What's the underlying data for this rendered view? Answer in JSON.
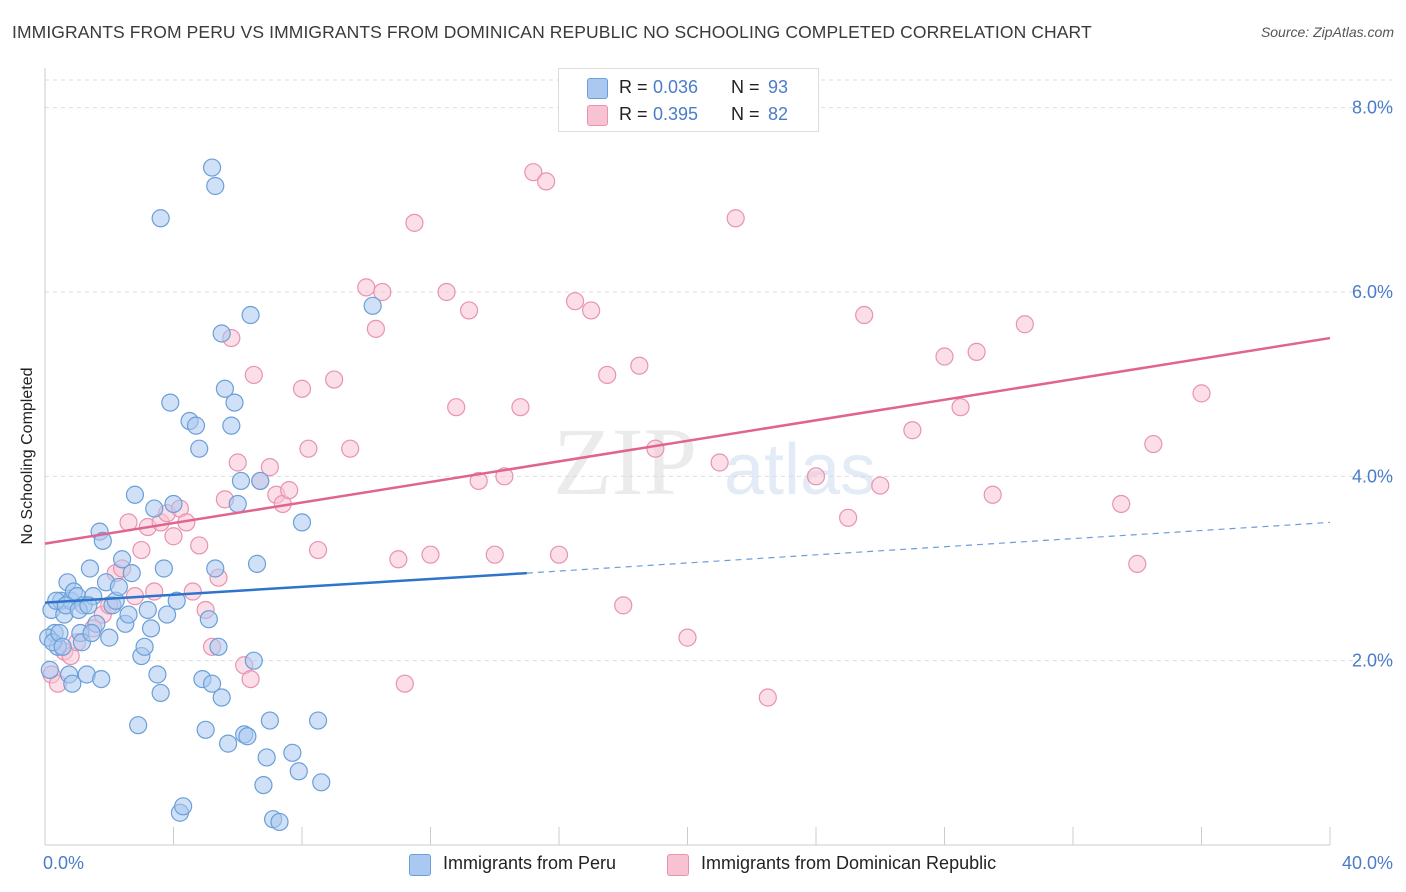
{
  "header": {
    "title": "IMMIGRANTS FROM PERU VS IMMIGRANTS FROM DOMINICAN REPUBLIC NO SCHOOLING COMPLETED CORRELATION CHART",
    "source": "Source: ZipAtlas.com"
  },
  "legend_top": {
    "rows": [
      {
        "r_label": "R =",
        "r_value": "0.036",
        "n_label": "N =",
        "n_value": "93"
      },
      {
        "r_label": "R =",
        "r_value": "0.395",
        "n_label": "N =",
        "n_value": "82"
      }
    ]
  },
  "legend_bottom": {
    "items": [
      "Immigrants from Peru",
      "Immigrants from Dominican Republic"
    ]
  },
  "watermark": {
    "zip": "ZIP",
    "atlas": "atlas"
  },
  "colors": {
    "peru_fill": "#aac8f0",
    "peru_stroke": "#6a9fd8",
    "peru_line": "#2f74cc",
    "dr_fill": "#f7c3d3",
    "dr_stroke": "#e893b0",
    "dr_line": "#e0648e",
    "tick_label": "#4a7cc9",
    "grid": "#dddddd"
  },
  "chart_data": {
    "type": "scatter",
    "title": "IMMIGRANTS FROM PERU VS IMMIGRANTS FROM DOMINICAN REPUBLIC NO SCHOOLING COMPLETED CORRELATION CHART",
    "xlabel": "",
    "ylabel": "No Schooling Completed",
    "xlim": [
      0,
      40
    ],
    "ylim": [
      0,
      8.3
    ],
    "x_tick_labels": [
      "0.0%",
      "40.0%"
    ],
    "y_ticks": [
      2,
      4,
      6,
      8
    ],
    "y_tick_labels": [
      "2.0%",
      "4.0%",
      "6.0%",
      "8.0%"
    ],
    "grid": true,
    "legend_position": "top-center",
    "series": [
      {
        "name": "Immigrants from Peru",
        "r": 0.036,
        "n": 93,
        "trend": {
          "x": [
            0,
            15
          ],
          "y": [
            2.63,
            2.95
          ],
          "dashed_to": [
            40,
            3.5
          ]
        },
        "points": [
          [
            0.2,
            2.55
          ],
          [
            0.3,
            2.3
          ],
          [
            0.4,
            2.15
          ],
          [
            0.5,
            2.65
          ],
          [
            0.6,
            2.5
          ],
          [
            0.7,
            2.85
          ],
          [
            0.8,
            2.65
          ],
          [
            0.9,
            2.75
          ],
          [
            1.0,
            2.7
          ],
          [
            1.1,
            2.3
          ],
          [
            1.2,
            2.6
          ],
          [
            1.3,
            1.85
          ],
          [
            1.4,
            3.0
          ],
          [
            1.5,
            2.7
          ],
          [
            1.6,
            2.4
          ],
          [
            1.7,
            3.4
          ],
          [
            1.8,
            3.3
          ],
          [
            1.9,
            2.85
          ],
          [
            2.0,
            2.25
          ],
          [
            2.1,
            2.6
          ],
          [
            2.2,
            2.65
          ],
          [
            2.3,
            2.8
          ],
          [
            2.4,
            3.1
          ],
          [
            2.5,
            2.4
          ],
          [
            2.6,
            2.5
          ],
          [
            2.7,
            2.95
          ],
          [
            2.8,
            3.8
          ],
          [
            2.9,
            1.3
          ],
          [
            3.0,
            2.05
          ],
          [
            3.1,
            2.15
          ],
          [
            3.2,
            2.55
          ],
          [
            3.3,
            2.35
          ],
          [
            3.4,
            3.65
          ],
          [
            3.5,
            1.85
          ],
          [
            3.6,
            1.65
          ],
          [
            3.7,
            3.0
          ],
          [
            3.8,
            2.5
          ],
          [
            3.9,
            4.8
          ],
          [
            4.0,
            3.7
          ],
          [
            4.1,
            2.65
          ],
          [
            4.2,
            0.35
          ],
          [
            4.3,
            0.42
          ],
          [
            4.5,
            4.6
          ],
          [
            4.7,
            4.55
          ],
          [
            4.8,
            4.3
          ],
          [
            4.9,
            1.8
          ],
          [
            5.0,
            1.25
          ],
          [
            5.1,
            2.45
          ],
          [
            5.2,
            1.75
          ],
          [
            5.3,
            3.0
          ],
          [
            5.4,
            2.15
          ],
          [
            5.5,
            1.6
          ],
          [
            5.6,
            4.95
          ],
          [
            5.7,
            1.1
          ],
          [
            5.8,
            4.55
          ],
          [
            5.9,
            4.8
          ],
          [
            6.0,
            3.7
          ],
          [
            6.1,
            3.95
          ],
          [
            6.2,
            1.2
          ],
          [
            6.3,
            1.18
          ],
          [
            6.4,
            5.75
          ],
          [
            6.5,
            2.0
          ],
          [
            6.6,
            3.05
          ],
          [
            6.7,
            3.95
          ],
          [
            6.8,
            0.65
          ],
          [
            6.9,
            0.95
          ],
          [
            7.0,
            1.35
          ],
          [
            7.1,
            0.28
          ],
          [
            7.3,
            0.25
          ],
          [
            7.7,
            1.0
          ],
          [
            7.9,
            0.8
          ],
          [
            8.0,
            3.5
          ],
          [
            8.5,
            1.35
          ],
          [
            8.6,
            0.68
          ],
          [
            10.2,
            5.85
          ],
          [
            5.2,
            7.35
          ],
          [
            5.3,
            7.15
          ],
          [
            3.6,
            6.8
          ],
          [
            5.5,
            5.55
          ],
          [
            0.1,
            2.25
          ],
          [
            0.15,
            1.9
          ],
          [
            0.25,
            2.2
          ],
          [
            0.35,
            2.65
          ],
          [
            0.45,
            2.3
          ],
          [
            0.55,
            2.15
          ],
          [
            0.65,
            2.6
          ],
          [
            0.75,
            1.85
          ],
          [
            0.85,
            1.75
          ],
          [
            1.05,
            2.55
          ],
          [
            1.15,
            2.2
          ],
          [
            1.35,
            2.6
          ],
          [
            1.45,
            2.3
          ],
          [
            1.75,
            1.8
          ]
        ]
      },
      {
        "name": "Immigrants from Dominican Republic",
        "r": 0.395,
        "n": 82,
        "trend": {
          "x": [
            0,
            40
          ],
          "y": [
            3.27,
            5.5
          ]
        },
        "points": [
          [
            0.2,
            1.85
          ],
          [
            0.4,
            1.75
          ],
          [
            0.6,
            2.1
          ],
          [
            0.8,
            2.05
          ],
          [
            1.0,
            2.2
          ],
          [
            1.5,
            2.35
          ],
          [
            1.8,
            2.5
          ],
          [
            2.0,
            2.6
          ],
          [
            2.2,
            2.95
          ],
          [
            2.4,
            3.0
          ],
          [
            2.6,
            3.5
          ],
          [
            2.8,
            2.7
          ],
          [
            3.0,
            3.2
          ],
          [
            3.2,
            3.45
          ],
          [
            3.4,
            2.75
          ],
          [
            3.6,
            3.5
          ],
          [
            3.8,
            3.6
          ],
          [
            4.0,
            3.35
          ],
          [
            4.2,
            3.65
          ],
          [
            4.4,
            3.5
          ],
          [
            4.6,
            2.75
          ],
          [
            4.8,
            3.25
          ],
          [
            5.0,
            2.55
          ],
          [
            5.2,
            2.15
          ],
          [
            5.4,
            2.9
          ],
          [
            5.6,
            3.75
          ],
          [
            5.8,
            5.5
          ],
          [
            6.0,
            4.15
          ],
          [
            6.2,
            1.95
          ],
          [
            6.4,
            1.8
          ],
          [
            6.5,
            5.1
          ],
          [
            6.7,
            3.95
          ],
          [
            7.0,
            4.1
          ],
          [
            7.2,
            3.8
          ],
          [
            7.4,
            3.7
          ],
          [
            7.6,
            3.85
          ],
          [
            8.0,
            4.95
          ],
          [
            8.2,
            4.3
          ],
          [
            8.5,
            3.2
          ],
          [
            9.0,
            5.05
          ],
          [
            9.5,
            4.3
          ],
          [
            10.0,
            6.05
          ],
          [
            10.3,
            5.6
          ],
          [
            10.5,
            6.0
          ],
          [
            11.0,
            3.1
          ],
          [
            11.2,
            1.75
          ],
          [
            11.5,
            6.75
          ],
          [
            12.0,
            3.15
          ],
          [
            12.5,
            6.0
          ],
          [
            12.8,
            4.75
          ],
          [
            13.2,
            5.8
          ],
          [
            13.5,
            3.95
          ],
          [
            14.0,
            3.15
          ],
          [
            14.3,
            4.0
          ],
          [
            14.8,
            4.75
          ],
          [
            15.2,
            7.3
          ],
          [
            15.6,
            7.2
          ],
          [
            16.0,
            3.15
          ],
          [
            16.5,
            5.9
          ],
          [
            17.0,
            5.8
          ],
          [
            17.5,
            5.1
          ],
          [
            18.0,
            2.6
          ],
          [
            18.5,
            5.2
          ],
          [
            19.0,
            4.3
          ],
          [
            20.0,
            2.25
          ],
          [
            21.0,
            4.15
          ],
          [
            21.5,
            6.8
          ],
          [
            22.5,
            1.6
          ],
          [
            24.0,
            4.0
          ],
          [
            25.0,
            3.55
          ],
          [
            25.5,
            5.75
          ],
          [
            26.0,
            3.9
          ],
          [
            27.0,
            4.5
          ],
          [
            28.0,
            5.3
          ],
          [
            28.5,
            4.75
          ],
          [
            29.0,
            5.35
          ],
          [
            29.5,
            3.8
          ],
          [
            30.5,
            5.65
          ],
          [
            33.5,
            3.7
          ],
          [
            34.0,
            3.05
          ],
          [
            34.5,
            4.35
          ],
          [
            36.0,
            4.9
          ]
        ]
      }
    ]
  }
}
